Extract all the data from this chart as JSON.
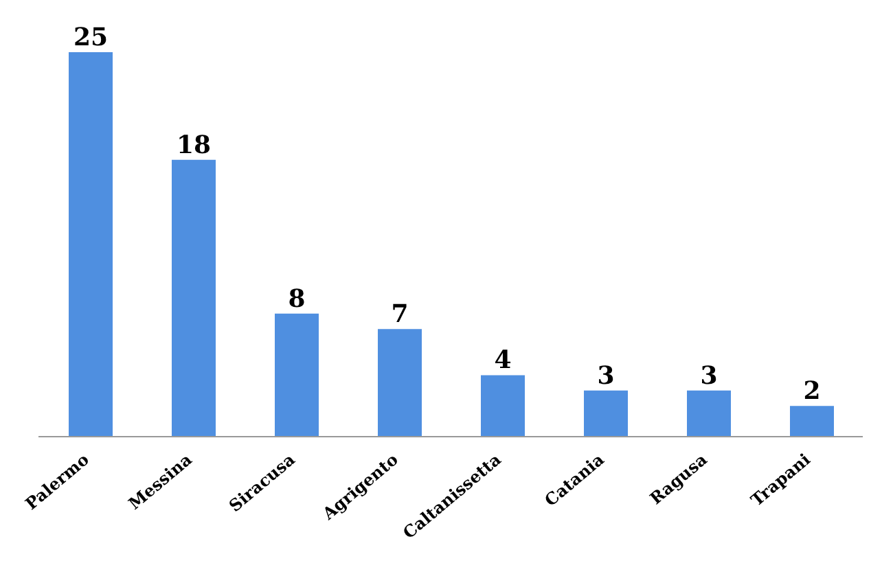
{
  "chart_data": {
    "type": "bar",
    "categories": [
      "Palermo",
      "Messina",
      "Siracusa",
      "Agrigento",
      "Caltanissetta",
      "Catania",
      "Ragusa",
      "Trapani"
    ],
    "values": [
      25,
      18,
      8,
      7,
      4,
      3,
      3,
      2
    ],
    "color": "#4f8fe0",
    "data_labels": true,
    "grid": false,
    "legend": false
  }
}
